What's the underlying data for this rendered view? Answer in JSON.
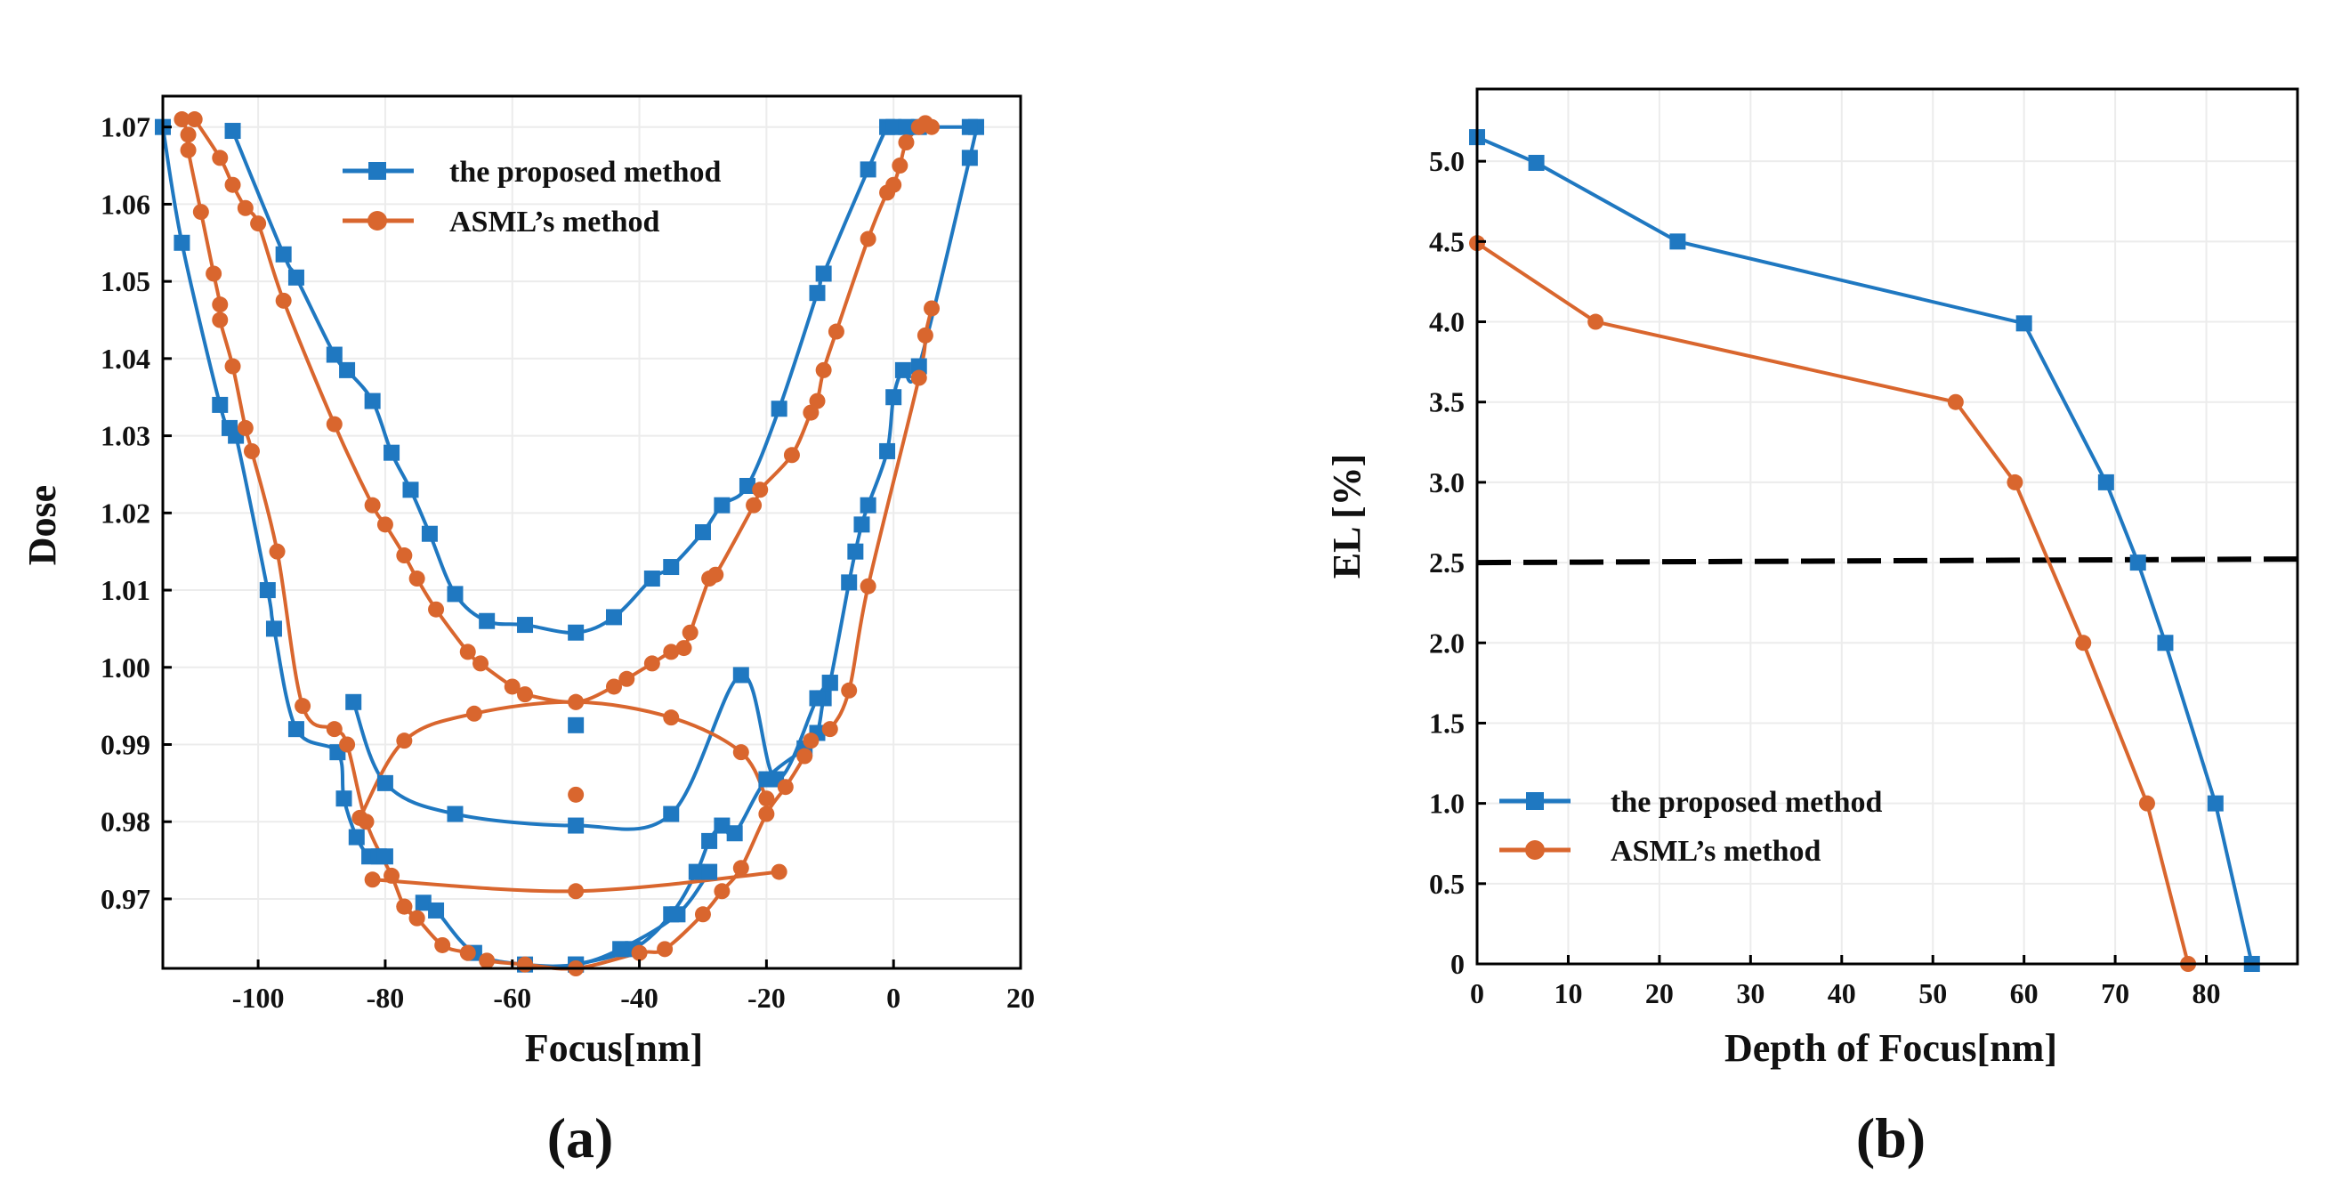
{
  "panel_labels": [
    "(a)",
    "(b)"
  ],
  "chart_data": [
    {
      "type": "line",
      "xlabel": "Focus[nm]",
      "ylabel": "Dose",
      "xlim": [
        -115,
        20
      ],
      "ylim": [
        0.961,
        1.074
      ],
      "xticks": [
        -100,
        -80,
        -60,
        -40,
        -20,
        0,
        20
      ],
      "yticks": [
        0.97,
        0.98,
        0.99,
        1.0,
        1.01,
        1.02,
        1.03,
        1.04,
        1.05,
        1.06,
        1.07
      ],
      "ytick_labels": [
        "0.97",
        "0.98",
        "0.99",
        "1.00",
        "1.01",
        "1.02",
        "1.03",
        "1.04",
        "1.05",
        "1.06",
        "1.07"
      ],
      "grid": true,
      "legend_position": "top-center",
      "series": [
        {
          "name": "the proposed method",
          "color": "#1f78c1",
          "marker": "square",
          "curves": [
            {
              "kind": "left-boundary",
              "x": [
                -115,
                -112,
                -106,
                -104.5,
                -103.5,
                -98.5,
                -97.5,
                -94,
                -87.5,
                -86.5,
                -84.5,
                -82.5,
                -81,
                -80
              ],
              "y": [
                1.07,
                1.055,
                1.034,
                1.031,
                1.03,
                1.01,
                1.005,
                0.992,
                0.989,
                0.983,
                0.978,
                0.9755,
                0.9755,
                0.9755
              ]
            },
            {
              "kind": "right-boundary",
              "x": [
                -50,
                -41,
                -35,
                -31,
                -29,
                -27,
                -25,
                -20,
                -14,
                -12,
                -11,
                -10,
                -7,
                -6,
                -5,
                -4,
                -1,
                0,
                1.5,
                4,
                12,
                13
              ],
              "y": [
                0.9615,
                0.9635,
                0.968,
                0.9735,
                0.9775,
                0.9795,
                0.9785,
                0.9855,
                0.9895,
                0.9915,
                0.996,
                0.998,
                1.011,
                1.015,
                1.0185,
                1.021,
                1.028,
                1.035,
                1.0385,
                1.039,
                1.066,
                1.07
              ]
            },
            {
              "kind": "upper-contour",
              "x": [
                -104,
                -96,
                -94,
                -88,
                -86,
                -82,
                -79,
                -76,
                -73,
                -69,
                -64,
                -58,
                -50,
                -44,
                -38,
                -35,
                -30,
                -27,
                -23,
                -18,
                -12,
                -11,
                -4,
                -1,
                0,
                2,
                4,
                12
              ],
              "y": [
                1.0695,
                1.0535,
                1.0505,
                1.0405,
                1.0385,
                1.0345,
                1.0278,
                1.023,
                1.0173,
                1.0095,
                1.006,
                1.0055,
                1.0045,
                1.0065,
                1.0115,
                1.013,
                1.0175,
                1.021,
                1.0235,
                1.0335,
                1.0485,
                1.051,
                1.0645,
                1.07,
                1.07,
                1.07,
                1.07,
                1.07
              ]
            },
            {
              "kind": "lower-bottom",
              "x": [
                -74,
                -72,
                -66,
                -58,
                -50,
                -43,
                -34,
                -29
              ],
              "y": [
                0.9695,
                0.9685,
                0.963,
                0.9615,
                0.9615,
                0.9635,
                0.968,
                0.9735
              ]
            },
            {
              "kind": "ellipse",
              "x": [
                -85,
                -80,
                -69,
                -50,
                -35,
                -24,
                -18.5,
                -12,
                -10
              ],
              "y": [
                0.9955,
                0.985,
                0.981,
                0.9795,
                0.981,
                0.999,
                0.9855,
                0.996,
                0.998
              ]
            }
          ],
          "center_point": {
            "x": -50,
            "y": 0.9925
          }
        },
        {
          "name": "ASML’s method",
          "color": "#d9662e",
          "marker": "circle",
          "curves": [
            {
              "kind": "left-boundary",
              "x": [
                -112,
                -111,
                -111,
                -109,
                -107,
                -106,
                -106,
                -104,
                -102,
                -101,
                -97,
                -93,
                -88,
                -86,
                -83,
                -79,
                -77,
                -75
              ],
              "y": [
                1.071,
                1.069,
                1.067,
                1.059,
                1.051,
                1.047,
                1.045,
                1.039,
                1.031,
                1.028,
                1.015,
                0.995,
                0.992,
                0.99,
                0.98,
                0.973,
                0.969,
                0.9675
              ]
            },
            {
              "kind": "upper-contour",
              "x": [
                -110,
                -106,
                -104,
                -102,
                -100,
                -96,
                -88,
                -82,
                -80,
                -77,
                -75,
                -72,
                -67,
                -65,
                -60,
                -58,
                -50,
                -44,
                -42,
                -38,
                -35,
                -33,
                -32,
                -29,
                -28,
                -22,
                -21,
                -16,
                -13,
                -12,
                -11,
                -9,
                -4,
                -1,
                0,
                1,
                2,
                4,
                5,
                6
              ],
              "y": [
                1.071,
                1.066,
                1.0625,
                1.0595,
                1.0575,
                1.0475,
                1.0315,
                1.021,
                1.0185,
                1.0145,
                1.0115,
                1.0075,
                1.002,
                1.0005,
                0.9975,
                0.9965,
                0.9955,
                0.9975,
                0.9985,
                1.0005,
                1.002,
                1.0025,
                1.0045,
                1.0115,
                1.012,
                1.021,
                1.023,
                1.0275,
                1.033,
                1.0345,
                1.0385,
                1.0435,
                1.0555,
                1.0615,
                1.0625,
                1.065,
                1.068,
                1.07,
                1.0705,
                1.07
              ]
            },
            {
              "kind": "lower-bottom",
              "x": [
                -77,
                -75,
                -71,
                -67,
                -64,
                -58,
                -50,
                -40,
                -36,
                -30,
                -27,
                -24,
                -20,
                -17,
                -14,
                -13,
                -10,
                -7,
                -4,
                4,
                5,
                6
              ],
              "y": [
                0.969,
                0.9675,
                0.964,
                0.963,
                0.962,
                0.9615,
                0.961,
                0.963,
                0.9635,
                0.968,
                0.971,
                0.974,
                0.981,
                0.9845,
                0.9885,
                0.9905,
                0.992,
                0.997,
                1.0105,
                1.0375,
                1.043,
                1.0465
              ]
            },
            {
              "kind": "ellipse",
              "x": [
                -84,
                -77,
                -66,
                -50,
                -35,
                -24,
                -20
              ],
              "y": [
                0.9805,
                0.9905,
                0.994,
                0.9955,
                0.9935,
                0.989,
                0.983
              ]
            },
            {
              "kind": "inner-lower",
              "x": [
                -82,
                -50,
                -18
              ],
              "y": [
                0.9725,
                0.971,
                0.9735
              ]
            }
          ],
          "center_point": {
            "x": -50,
            "y": 0.9835
          }
        }
      ]
    },
    {
      "type": "line",
      "xlabel": "Depth of Focus[nm]",
      "ylabel": "EL [%]",
      "xlim": [
        0,
        90
      ],
      "ylim": [
        0,
        5.45
      ],
      "xticks": [
        0,
        10,
        20,
        30,
        40,
        50,
        60,
        70,
        80
      ],
      "yticks": [
        0,
        0.5,
        1.0,
        1.5,
        2.0,
        2.5,
        3.0,
        3.5,
        4.0,
        4.5,
        5.0
      ],
      "ytick_labels": [
        "0",
        "0.5",
        "1.0",
        "1.5",
        "2.0",
        "2.5",
        "3.0",
        "3.5",
        "4.0",
        "4.5",
        "5.0"
      ],
      "grid": true,
      "legend_position": "bottom-left",
      "reference_line": {
        "y": 2.5,
        "style": "dashed",
        "color": "#000000"
      },
      "series": [
        {
          "name": "the proposed method",
          "color": "#1f78c1",
          "marker": "square",
          "x": [
            0,
            6.5,
            22,
            60,
            69,
            72.5,
            75.5,
            81,
            85
          ],
          "y": [
            5.15,
            4.99,
            4.5,
            3.99,
            3.0,
            2.5,
            2.0,
            1.0,
            0
          ]
        },
        {
          "name": "ASML’s method",
          "color": "#d9662e",
          "marker": "circle",
          "x": [
            0,
            13,
            52.5,
            59,
            66.5,
            73.5,
            78
          ],
          "y": [
            4.49,
            4.0,
            3.5,
            3.0,
            2.0,
            1.0,
            0
          ]
        }
      ]
    }
  ]
}
